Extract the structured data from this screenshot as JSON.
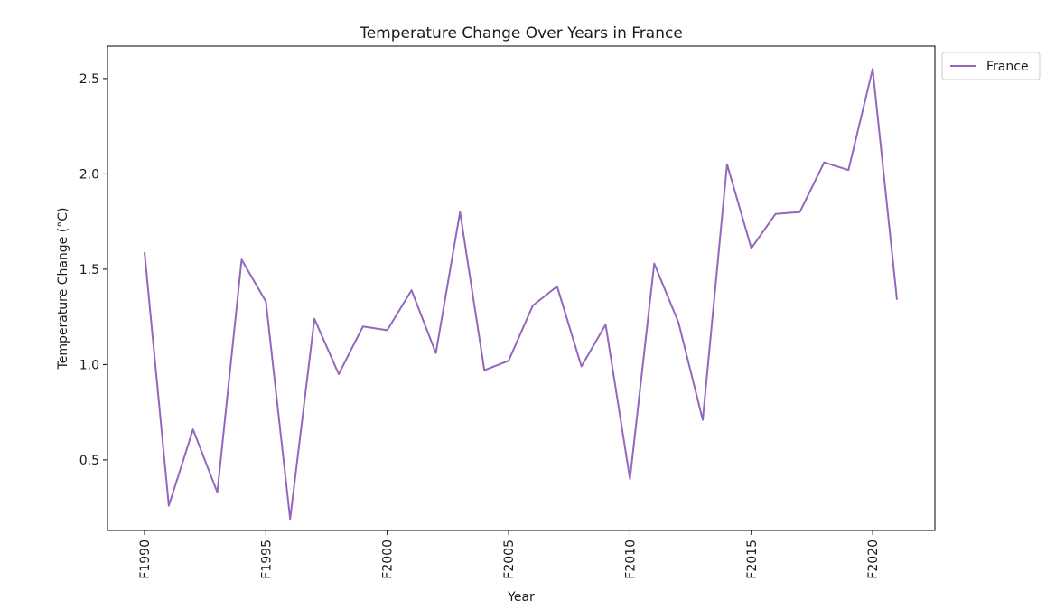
{
  "chart_data": {
    "type": "line",
    "title": "Temperature Change Over Years in France",
    "xlabel": "Year",
    "ylabel": "Temperature Change (°C)",
    "x": [
      "F1990",
      "F1991",
      "F1992",
      "F1993",
      "F1994",
      "F1995",
      "F1996",
      "F1997",
      "F1998",
      "F1999",
      "F2000",
      "F2001",
      "F2002",
      "F2003",
      "F2004",
      "F2005",
      "F2006",
      "F2007",
      "F2008",
      "F2009",
      "F2010",
      "F2011",
      "F2012",
      "F2013",
      "F2014",
      "F2015",
      "F2016",
      "F2017",
      "F2018",
      "F2019",
      "F2020",
      "F2021"
    ],
    "xticks": [
      "F1990",
      "F1995",
      "F2000",
      "F2005",
      "F2010",
      "F2015",
      "F2020"
    ],
    "yticks": [
      "0.5",
      "1.0",
      "1.5",
      "2.0",
      "2.5"
    ],
    "ylim": [
      0.13,
      2.67
    ],
    "series": [
      {
        "name": "France",
        "color": "#9467bd",
        "values": [
          1.59,
          0.26,
          0.66,
          0.33,
          1.55,
          1.33,
          0.19,
          1.24,
          0.95,
          1.2,
          1.18,
          1.39,
          1.06,
          1.8,
          0.97,
          1.02,
          1.31,
          1.41,
          0.99,
          1.21,
          0.4,
          1.53,
          1.22,
          0.71,
          2.05,
          1.61,
          1.79,
          1.8,
          2.06,
          2.02,
          2.55,
          1.34
        ]
      }
    ],
    "legend": "upper-right-outside",
    "grid": false
  }
}
